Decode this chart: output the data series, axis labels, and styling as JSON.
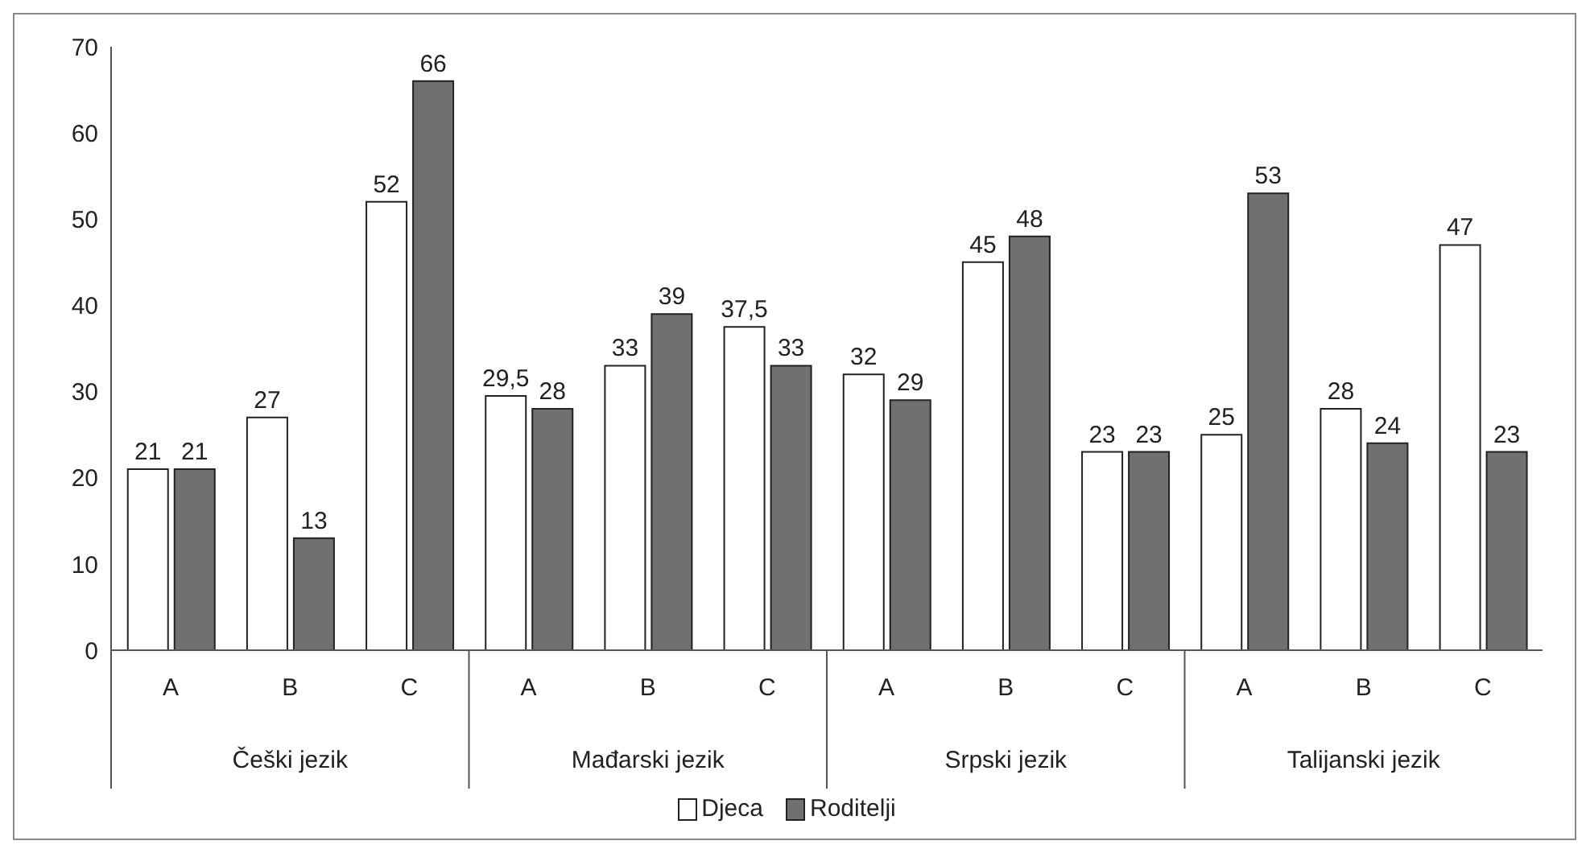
{
  "chart_data": {
    "type": "bar",
    "categories": [
      "A",
      "B",
      "C",
      "A",
      "B",
      "C",
      "A",
      "B",
      "C",
      "A",
      "B",
      "C"
    ],
    "annotations": [
      "Češki jezik",
      "Mađarski jezik",
      "Srpski jezik",
      "Talijanski jezik"
    ],
    "series": [
      {
        "name": "Djeca",
        "color": "#ffffff",
        "values": [
          21,
          27,
          52,
          29.5,
          33,
          37.5,
          32,
          45,
          23,
          25,
          28,
          47
        ],
        "value_labels": [
          "21",
          "27",
          "52",
          "29,5",
          "33",
          "37,5",
          "32",
          "45",
          "23",
          "25",
          "28",
          "47"
        ]
      },
      {
        "name": "Roditelji",
        "color": "#707070",
        "values": [
          21,
          13,
          66,
          28,
          39,
          33,
          29,
          48,
          23,
          53,
          24,
          23
        ],
        "value_labels": [
          "21",
          "13",
          "66",
          "28",
          "39",
          "33",
          "29",
          "48",
          "23",
          "53",
          "24",
          "23"
        ]
      }
    ],
    "ylim": [
      0,
      70
    ],
    "yticks": [
      0,
      10,
      20,
      30,
      40,
      50,
      60,
      70
    ],
    "grid": false,
    "legend": "bottom"
  }
}
